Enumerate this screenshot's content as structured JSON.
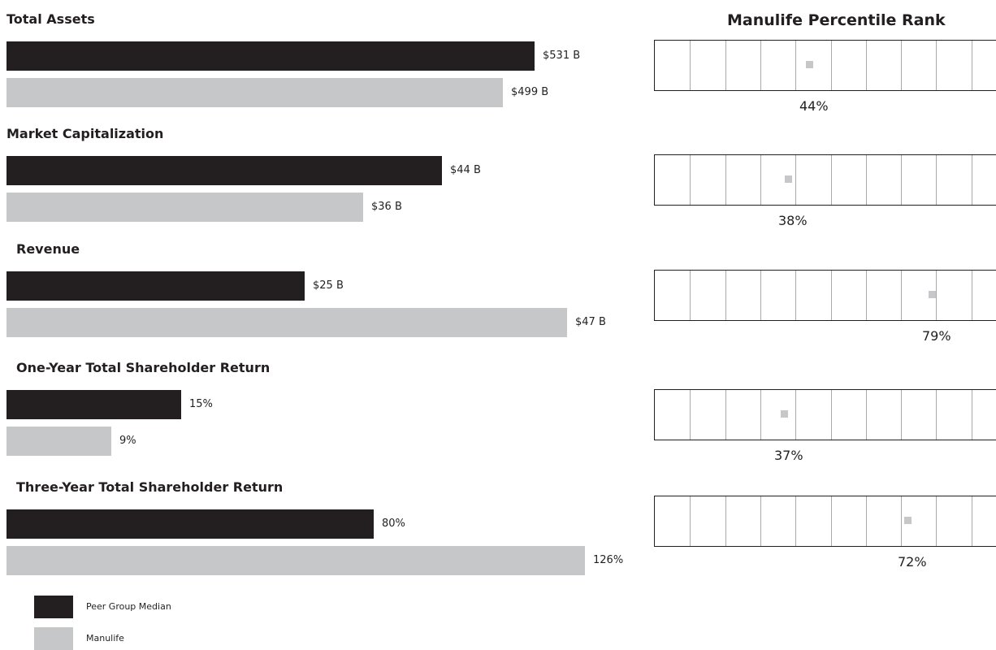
{
  "colors": {
    "peer": "#231f20",
    "manulife": "#c6c7c8",
    "grid": "#a7a9ac"
  },
  "rank_title": "Manulife Percentile Rank",
  "legend": [
    {
      "label": "Peer Group Median",
      "color": "#231f20"
    },
    {
      "label": "Manulife",
      "color": "#c6c7c8"
    }
  ],
  "chart_data": [
    {
      "type": "bar",
      "orientation": "horizontal",
      "title": "Total Assets",
      "series": [
        {
          "name": "Peer Group Median",
          "values": [
            531
          ],
          "labels": [
            "$531 B"
          ]
        },
        {
          "name": "Manulife",
          "values": [
            499
          ],
          "labels": [
            "$499 B"
          ]
        }
      ],
      "unit": "$ B",
      "percentile_rank": 44,
      "percentile_label": "44%"
    },
    {
      "type": "bar",
      "orientation": "horizontal",
      "title": "Market Capitalization",
      "series": [
        {
          "name": "Peer Group Median",
          "values": [
            44
          ],
          "labels": [
            "$44 B"
          ]
        },
        {
          "name": "Manulife",
          "values": [
            36
          ],
          "labels": [
            "$36 B"
          ]
        }
      ],
      "unit": "$ B",
      "percentile_rank": 38,
      "percentile_label": "38%"
    },
    {
      "type": "bar",
      "orientation": "horizontal",
      "title": "Revenue",
      "series": [
        {
          "name": "Peer Group Median",
          "values": [
            25
          ],
          "labels": [
            "$25 B"
          ]
        },
        {
          "name": "Manulife",
          "values": [
            47
          ],
          "labels": [
            "$47 B"
          ]
        }
      ],
      "unit": "$ B",
      "percentile_rank": 79,
      "percentile_label": "79%"
    },
    {
      "type": "bar",
      "orientation": "horizontal",
      "title": "One-Year Total Shareholder Return",
      "series": [
        {
          "name": "Peer Group Median",
          "values": [
            15
          ],
          "labels": [
            "15%"
          ]
        },
        {
          "name": "Manulife",
          "values": [
            9
          ],
          "labels": [
            "9%"
          ]
        }
      ],
      "unit": "%",
      "percentile_rank": 37,
      "percentile_label": "37%"
    },
    {
      "type": "bar",
      "orientation": "horizontal",
      "title": "Three-Year Total Shareholder Return",
      "series": [
        {
          "name": "Peer Group Median",
          "values": [
            80
          ],
          "labels": [
            "80%"
          ]
        },
        {
          "name": "Manulife",
          "values": [
            126
          ],
          "labels": [
            "126%"
          ]
        }
      ],
      "unit": "%",
      "percentile_rank": 72,
      "percentile_label": "72%"
    }
  ]
}
